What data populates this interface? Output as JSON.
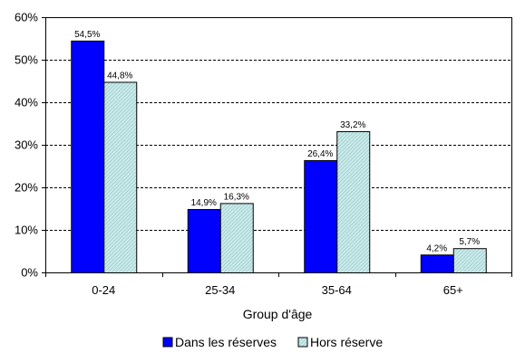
{
  "chart_data": {
    "type": "bar",
    "categories": [
      "0-24",
      "25-34",
      "35-64",
      "65+"
    ],
    "series": [
      {
        "name": "Dans les réserves",
        "values": [
          54.5,
          14.9,
          26.4,
          4.2
        ],
        "labels": [
          "54,5%",
          "14,9%",
          "26,4%",
          "4,2%"
        ],
        "color": "#0000FF"
      },
      {
        "name": "Hors réserve",
        "values": [
          44.8,
          16.3,
          33.2,
          5.7
        ],
        "labels": [
          "44,8%",
          "16,3%",
          "33,2%",
          "5,7%"
        ],
        "color": "#CCECEC"
      }
    ],
    "ylim": [
      0,
      60
    ],
    "yticks": [
      0,
      10,
      20,
      30,
      40,
      50,
      60
    ],
    "ytick_labels": [
      "0%",
      "10%",
      "20%",
      "30%",
      "40%",
      "50%",
      "60%"
    ],
    "xlabel": "Group d'âge",
    "ylabel": "",
    "title": "",
    "grid": "horizontal dashed",
    "legend_position": "bottom"
  }
}
